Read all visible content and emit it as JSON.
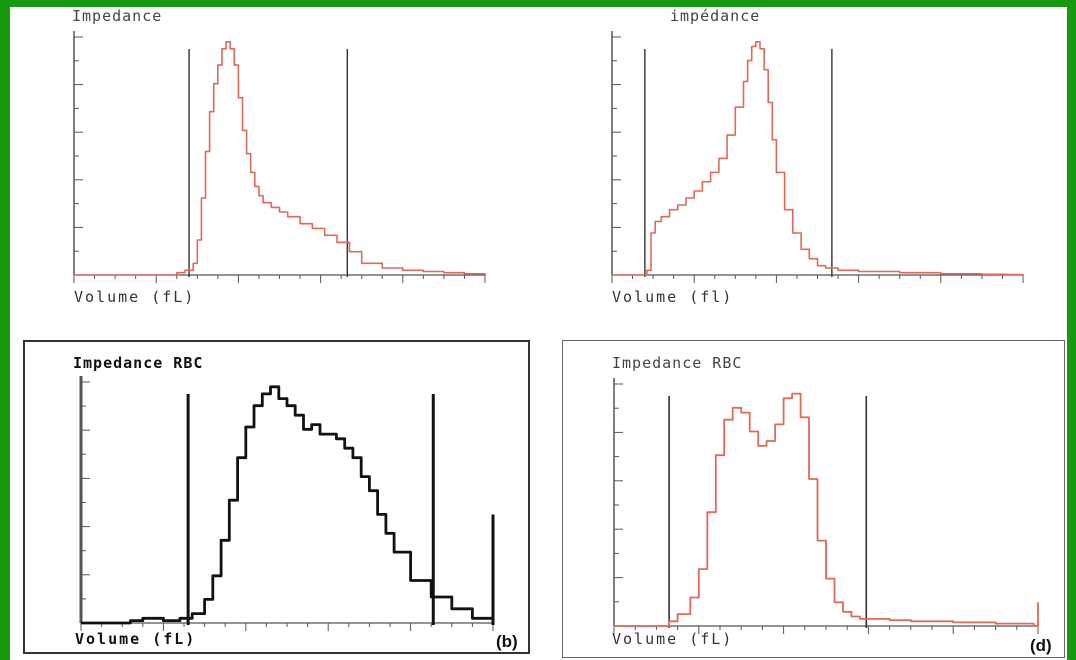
{
  "style": {
    "background": "#159a12",
    "red_line": "#e06a5a",
    "black_line": "#111111",
    "axis": "#555555"
  },
  "chart_data": [
    {
      "panel": "a",
      "type": "line",
      "title": "Impedance",
      "xlabel": "Volume (fL)",
      "ylabel": "",
      "letter": "",
      "color": "#e06a5a",
      "x_ticks": 20,
      "y_ticks": 10,
      "gates": [
        {
          "x": 0.28
        },
        {
          "x": 0.665
        }
      ],
      "series": [
        {
          "x": [
            0.0,
            0.1,
            0.2,
            0.25,
            0.27,
            0.29,
            0.3,
            0.31,
            0.32,
            0.33,
            0.34,
            0.35,
            0.36,
            0.37,
            0.38,
            0.39,
            0.4,
            0.41,
            0.42,
            0.43,
            0.44,
            0.45,
            0.46,
            0.48,
            0.5,
            0.52,
            0.55,
            0.58,
            0.61,
            0.64,
            0.67,
            0.7,
            0.75,
            0.8,
            0.85,
            0.9,
            0.95,
            1.0
          ],
          "y": [
            0.0,
            0.0,
            0.0,
            0.01,
            0.02,
            0.05,
            0.15,
            0.33,
            0.53,
            0.7,
            0.82,
            0.9,
            0.97,
            1.0,
            0.97,
            0.9,
            0.76,
            0.62,
            0.52,
            0.44,
            0.38,
            0.34,
            0.31,
            0.29,
            0.27,
            0.25,
            0.22,
            0.2,
            0.17,
            0.14,
            0.1,
            0.05,
            0.03,
            0.02,
            0.015,
            0.01,
            0.005,
            0.0
          ]
        }
      ]
    },
    {
      "panel": "c",
      "type": "line",
      "title": "impédance",
      "xlabel": "Volume (fl)",
      "ylabel": "",
      "letter": "",
      "color": "#e06a5a",
      "x_ticks": 20,
      "y_ticks": 10,
      "gates": [
        {
          "x": 0.08
        },
        {
          "x": 0.535
        }
      ],
      "series": [
        {
          "x": [
            0.0,
            0.06,
            0.085,
            0.095,
            0.105,
            0.12,
            0.14,
            0.16,
            0.18,
            0.2,
            0.22,
            0.24,
            0.26,
            0.28,
            0.3,
            0.32,
            0.33,
            0.34,
            0.35,
            0.36,
            0.37,
            0.38,
            0.39,
            0.4,
            0.42,
            0.44,
            0.46,
            0.48,
            0.5,
            0.52,
            0.55,
            0.6,
            0.7,
            0.8,
            0.9,
            0.96,
            1.0
          ],
          "y": [
            0.0,
            0.0,
            0.02,
            0.18,
            0.23,
            0.25,
            0.28,
            0.3,
            0.33,
            0.36,
            0.4,
            0.44,
            0.5,
            0.6,
            0.72,
            0.83,
            0.92,
            0.98,
            1.0,
            0.97,
            0.88,
            0.74,
            0.58,
            0.44,
            0.28,
            0.18,
            0.11,
            0.07,
            0.04,
            0.03,
            0.02,
            0.015,
            0.01,
            0.005,
            0.003,
            0.002,
            0.0
          ]
        }
      ]
    },
    {
      "panel": "b",
      "type": "line",
      "title": "Impedance RBC",
      "xlabel": "Volume (fL)",
      "ylabel": "",
      "letter": "(b)",
      "color": "#111111",
      "x_ticks": 20,
      "y_ticks": 10,
      "gates": [
        {
          "x": 0.26
        },
        {
          "x": 0.855
        },
        {
          "x": 1.0
        }
      ],
      "series": [
        {
          "x": [
            0.0,
            0.08,
            0.12,
            0.15,
            0.2,
            0.24,
            0.27,
            0.3,
            0.32,
            0.34,
            0.36,
            0.38,
            0.4,
            0.42,
            0.44,
            0.46,
            0.48,
            0.5,
            0.52,
            0.54,
            0.56,
            0.58,
            0.6,
            0.62,
            0.64,
            0.66,
            0.68,
            0.7,
            0.72,
            0.74,
            0.76,
            0.8,
            0.85,
            0.9,
            0.95,
            1.0
          ],
          "y": [
            0.0,
            0.0,
            0.01,
            0.02,
            0.01,
            0.02,
            0.04,
            0.1,
            0.2,
            0.35,
            0.52,
            0.7,
            0.83,
            0.92,
            0.97,
            1.0,
            0.95,
            0.92,
            0.88,
            0.82,
            0.84,
            0.8,
            0.8,
            0.78,
            0.74,
            0.7,
            0.62,
            0.56,
            0.46,
            0.38,
            0.3,
            0.18,
            0.11,
            0.06,
            0.02,
            0.0
          ]
        }
      ]
    },
    {
      "panel": "d",
      "type": "line",
      "title": "Impedance RBC",
      "xlabel": "Volume (fL)",
      "ylabel": "",
      "letter": "(d)",
      "color": "#e06a5a",
      "x_ticks": 20,
      "y_ticks": 10,
      "gates": [
        {
          "x": 0.13
        },
        {
          "x": 0.595
        }
      ],
      "series": [
        {
          "x": [
            0.0,
            0.1,
            0.13,
            0.15,
            0.18,
            0.2,
            0.22,
            0.24,
            0.26,
            0.28,
            0.3,
            0.32,
            0.34,
            0.36,
            0.38,
            0.4,
            0.42,
            0.44,
            0.46,
            0.48,
            0.5,
            0.52,
            0.54,
            0.56,
            0.58,
            0.6,
            0.65,
            0.7,
            0.8,
            0.9,
            0.99,
            1.0
          ],
          "y": [
            0.0,
            0.0,
            0.02,
            0.05,
            0.12,
            0.24,
            0.48,
            0.72,
            0.87,
            0.92,
            0.9,
            0.82,
            0.76,
            0.78,
            0.85,
            0.96,
            0.98,
            0.88,
            0.62,
            0.36,
            0.2,
            0.1,
            0.06,
            0.04,
            0.03,
            0.03,
            0.025,
            0.02,
            0.015,
            0.01,
            0.0,
            0.1
          ]
        }
      ]
    }
  ]
}
